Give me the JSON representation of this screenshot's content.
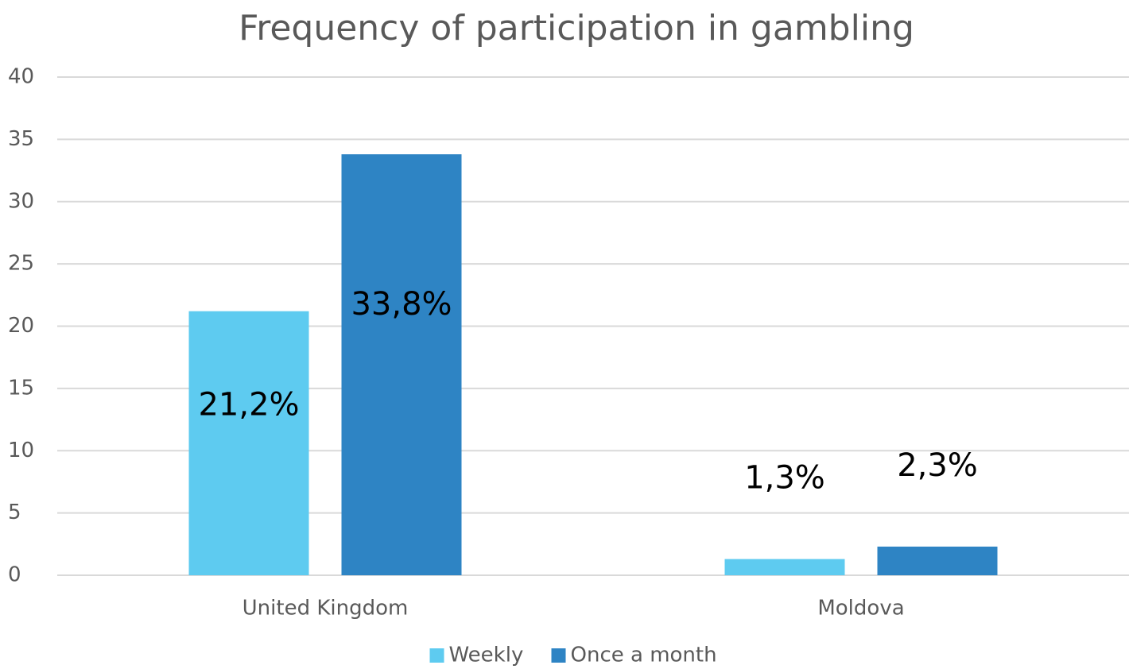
{
  "chart_data": {
    "type": "bar",
    "title": "Frequency of participation in gambling",
    "categories": [
      "United Kingdom",
      "Moldova"
    ],
    "series": [
      {
        "name": "Weekly",
        "color": "#5ecbf0",
        "values": [
          21.2,
          1.3
        ],
        "value_labels": [
          "21,2%",
          "1,3%"
        ]
      },
      {
        "name": "Once a month",
        "color": "#2e84c4",
        "values": [
          33.8,
          2.3
        ],
        "value_labels": [
          "33,8%",
          "2,3%"
        ]
      }
    ],
    "ylim": [
      0,
      40
    ],
    "yticks": [
      0,
      5,
      10,
      15,
      20,
      25,
      30,
      35,
      40
    ],
    "grid": true,
    "legend": "bottom"
  }
}
